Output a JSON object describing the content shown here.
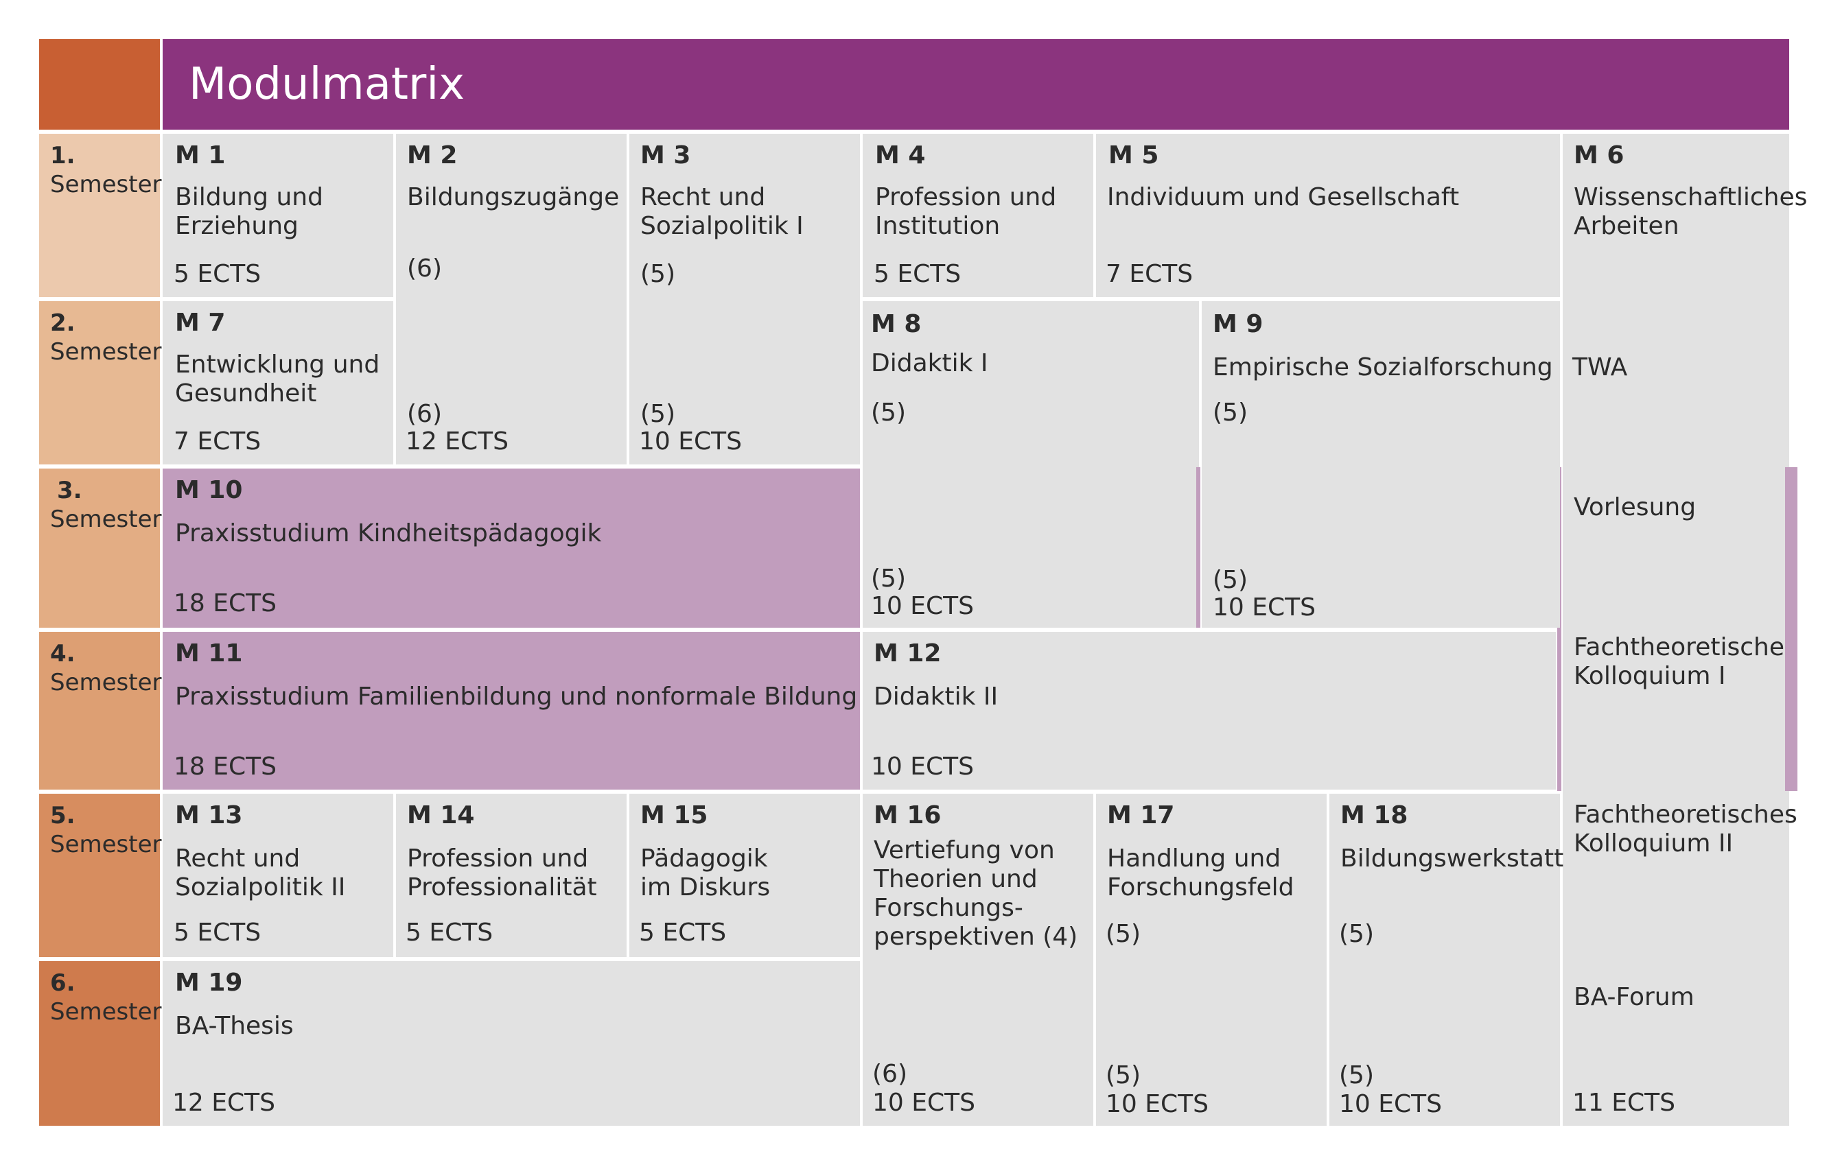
{
  "title": "Modulmatrix",
  "semesters": [
    {
      "num": "1.",
      "label": "Semester"
    },
    {
      "num": "2.",
      "label": "Semester"
    },
    {
      "num": "3.",
      "label": "Semester"
    },
    {
      "num": "4.",
      "label": "Semester"
    },
    {
      "num": "5.",
      "label": "Semester"
    },
    {
      "num": "6.",
      "label": "Semester"
    }
  ],
  "modules": {
    "m1": {
      "code": "M 1",
      "name": "Bildung und\nErziehung",
      "ects": "5 ECTS"
    },
    "m2": {
      "code": "M 2",
      "name": "Bildungszugänge",
      "part1": "(6)",
      "part2": "(6)",
      "ects": "12 ECTS"
    },
    "m3": {
      "code": "M 3",
      "name": "Recht und\nSozialpolitik I",
      "part1": "(5)",
      "part2": "(5)",
      "ects": "10 ECTS"
    },
    "m4": {
      "code": "M 4",
      "name": "Profession und\nInstitution",
      "ects": "5 ECTS"
    },
    "m5": {
      "code": "M 5",
      "name": "Individuum und Gesellschaft",
      "ects": "7 ECTS"
    },
    "m6": {
      "code": "M 6",
      "name": "Wissenschaftliches\nArbeiten",
      "part_twa": "TWA",
      "part_vorlesung": "Vorlesung",
      "part_ftk1": "Fachtheoretisches\nKolloquium I",
      "part_ftk2": "Fachtheoretisches\nKolloquium II",
      "part_forum": "BA-Forum",
      "ects": "11 ECTS"
    },
    "m7": {
      "code": "M 7",
      "name": "Entwicklung und\nGesundheit",
      "ects": "7 ECTS"
    },
    "m8": {
      "code": "M 8",
      "name": "Didaktik I",
      "part1": "(5)",
      "part2": "(5)",
      "ects": "10 ECTS"
    },
    "m9": {
      "code": "M 9",
      "name": "Empirische Sozialforschung",
      "part1": "(5)",
      "part2": "(5)",
      "ects": "10 ECTS"
    },
    "m10": {
      "code": "M 10",
      "name": "Praxisstudium Kindheitspädagogik",
      "ects": "18 ECTS"
    },
    "m11": {
      "code": "M 11",
      "name": "Praxisstudium Familienbildung und nonformale Bildung",
      "ects": "18 ECTS"
    },
    "m12": {
      "code": "M 12",
      "name": "Didaktik II",
      "ects": "10 ECTS"
    },
    "m13": {
      "code": "M 13",
      "name": "Recht und\nSozialpolitik II",
      "ects": "5 ECTS"
    },
    "m14": {
      "code": "M 14",
      "name": "Profession und\nProfessionalität",
      "ects": "5 ECTS"
    },
    "m15": {
      "code": "M 15",
      "name": "Pädagogik\nim Diskurs",
      "ects": "5 ECTS"
    },
    "m16": {
      "code": "M 16",
      "name": "Vertiefung von\nTheorien und\nForschungs-\nperspektiven (4)",
      "part2": "(6)",
      "ects": "10 ECTS"
    },
    "m17": {
      "code": "M 17",
      "name": "Handlung und\nForschungsfeld",
      "part1": "(5)",
      "part2": "(5)",
      "ects": "10 ECTS"
    },
    "m18": {
      "code": "M 18",
      "name": "Bildungswerkstatt",
      "part1": "(5)",
      "part2": "(5)",
      "ects": "10 ECTS"
    },
    "m19": {
      "code": "M 19",
      "name": "BA-Thesis",
      "ects": "12 ECTS"
    }
  },
  "colors": {
    "title_bar": "#8b347e",
    "corner": "#c85f33",
    "module_grey": "#e2e2e2",
    "practice_pink": "#c19dbd",
    "semester_shades": [
      "#ecc9ad",
      "#e7b993",
      "#e3ad84",
      "#dd9f73",
      "#d78d5f",
      "#cf7b4d"
    ]
  }
}
